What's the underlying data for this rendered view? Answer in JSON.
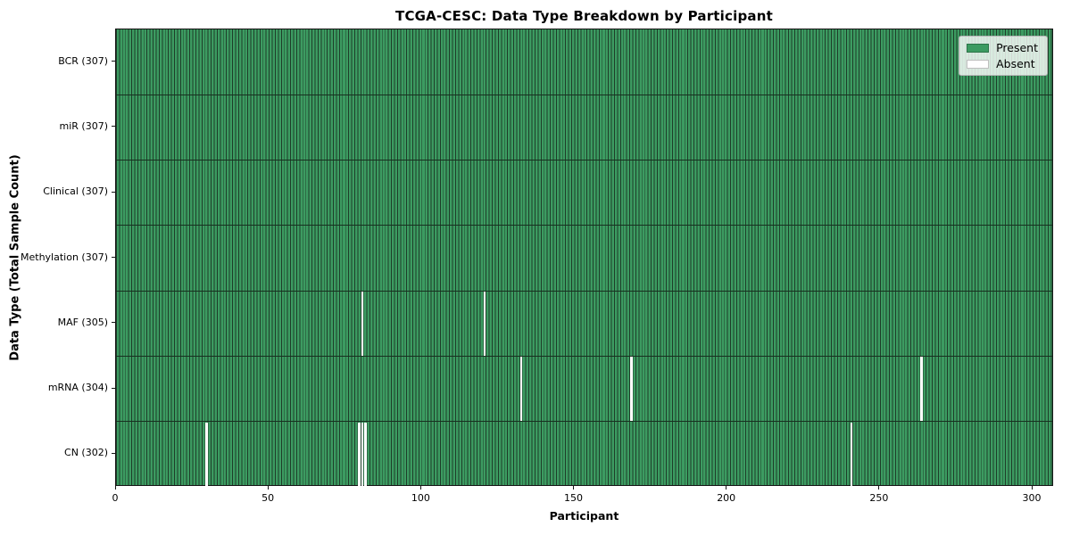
{
  "chart_data": {
    "type": "heatmap",
    "title": "TCGA-CESC: Data Type Breakdown by Participant",
    "xlabel": "Participant",
    "ylabel": "Data Type (Total Sample Count)",
    "x_ticks": [
      0,
      50,
      100,
      150,
      200,
      250,
      300
    ],
    "x_range": [
      0,
      307
    ],
    "n_participants": 307,
    "grid": false,
    "legend_position": "upper right",
    "rows": [
      {
        "data_type": "BCR",
        "total": 307,
        "label": "BCR (307)",
        "absent_participants": []
      },
      {
        "data_type": "miR",
        "total": 307,
        "label": "miR (307)",
        "absent_participants": []
      },
      {
        "data_type": "Clinical",
        "total": 307,
        "label": "Clinical (307)",
        "absent_participants": []
      },
      {
        "data_type": "Methylation",
        "total": 307,
        "label": "Methylation (307)",
        "absent_participants": []
      },
      {
        "data_type": "MAF",
        "total": 305,
        "label": "MAF (305)",
        "absent_participants": [
          80,
          120
        ]
      },
      {
        "data_type": "mRNA",
        "total": 304,
        "label": "mRNA (304)",
        "absent_participants": [
          132,
          168,
          263
        ]
      },
      {
        "data_type": "CN",
        "total": 302,
        "label": "CN (302)",
        "absent_participants": [
          29,
          79,
          80,
          81,
          240
        ]
      }
    ],
    "legend": [
      {
        "label": "Present",
        "color": "#3c9b61"
      },
      {
        "label": "Absent",
        "color": "#ffffff"
      }
    ],
    "colors": {
      "present_fill": "#3c9b61",
      "cell_edge": "#1e3d29",
      "row_divider": "#17301f",
      "absent_fill": "#ffffff",
      "spine": "#151515",
      "text": "#000000",
      "background": "#ffffff"
    }
  }
}
